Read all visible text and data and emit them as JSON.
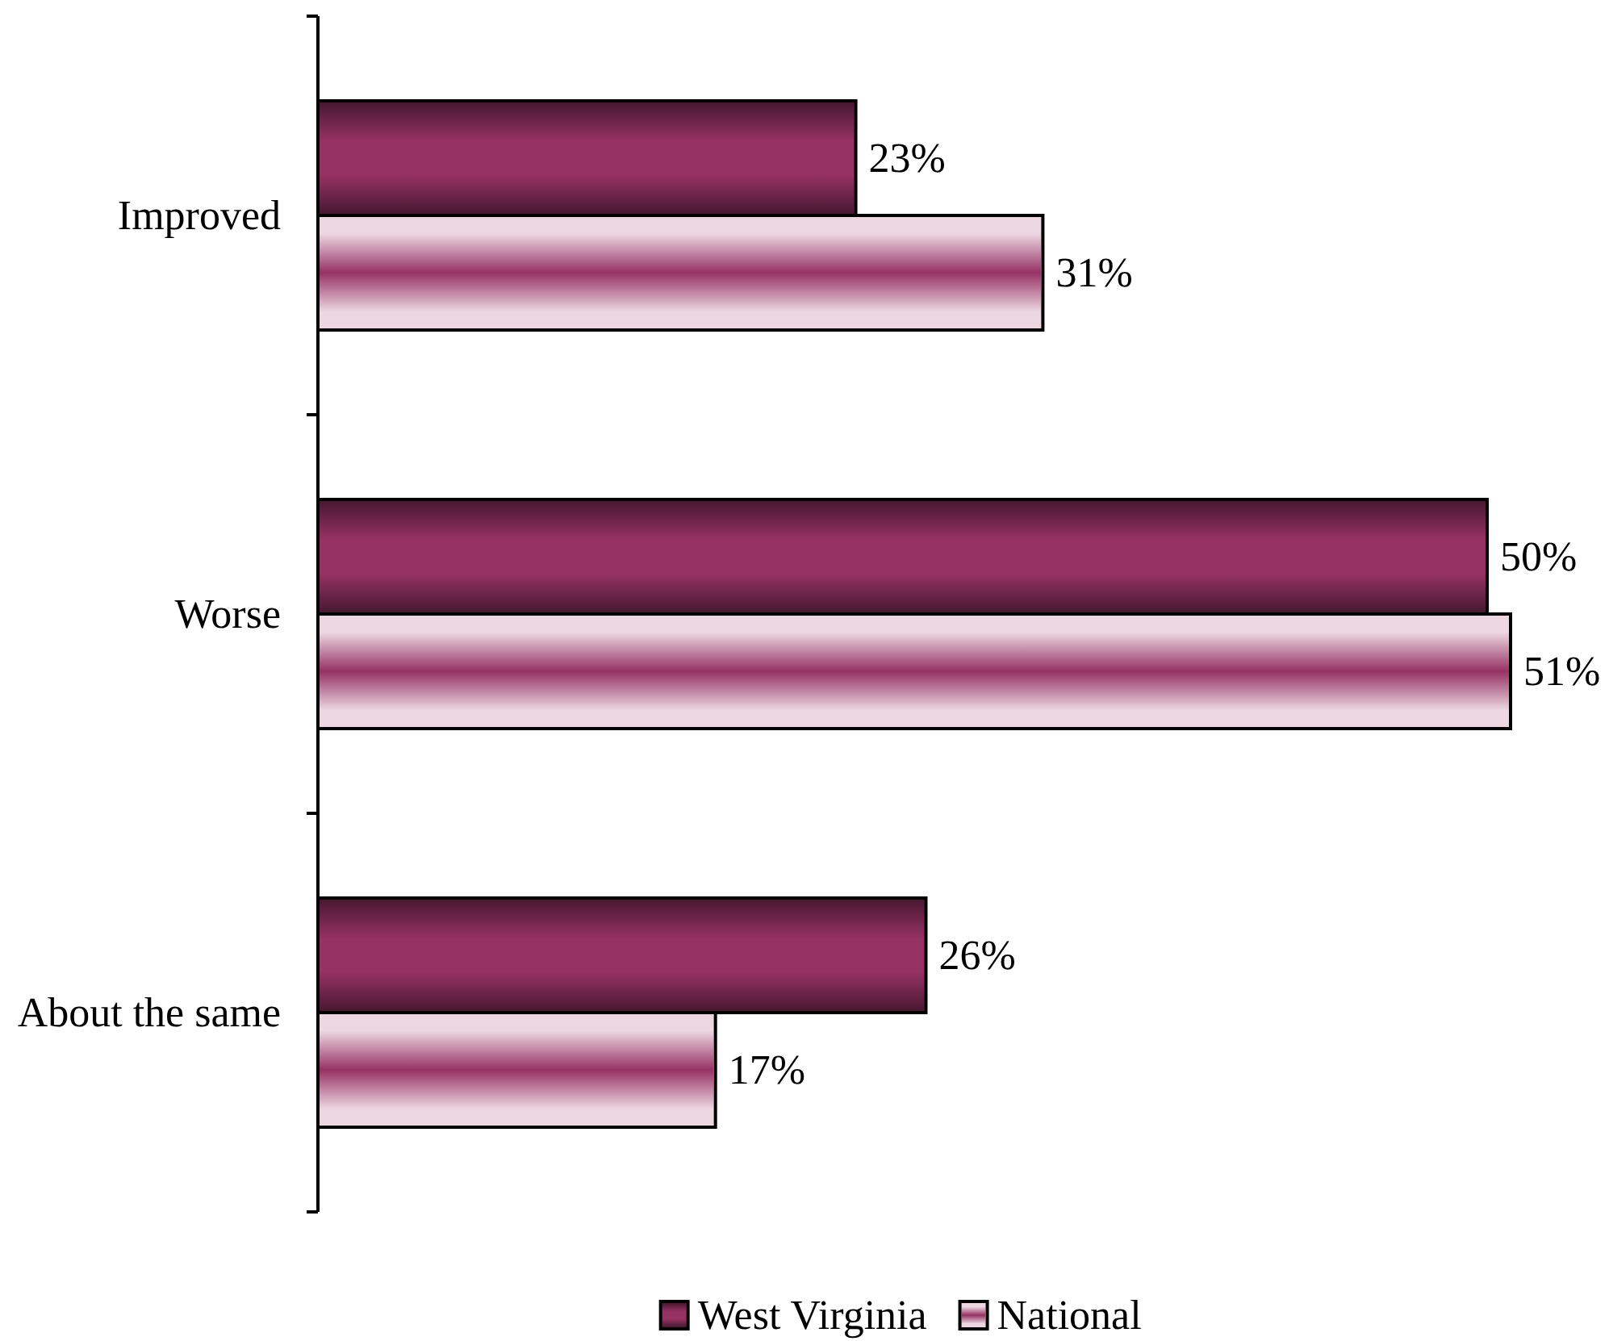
{
  "chart_data": {
    "type": "bar",
    "orientation": "horizontal",
    "categories": [
      "Improved",
      "Worse",
      "About the same"
    ],
    "series": [
      {
        "name": "West Virginia",
        "color": "#963264",
        "values": [
          23,
          50,
          26
        ],
        "value_labels": [
          "23%",
          "50%",
          "26%"
        ]
      },
      {
        "name": "National",
        "color": "#ecd6e0",
        "values": [
          31,
          51,
          17
        ],
        "value_labels": [
          "31%",
          "51%",
          "17%"
        ]
      }
    ],
    "legend": "bottom",
    "tick_labels": "y"
  }
}
